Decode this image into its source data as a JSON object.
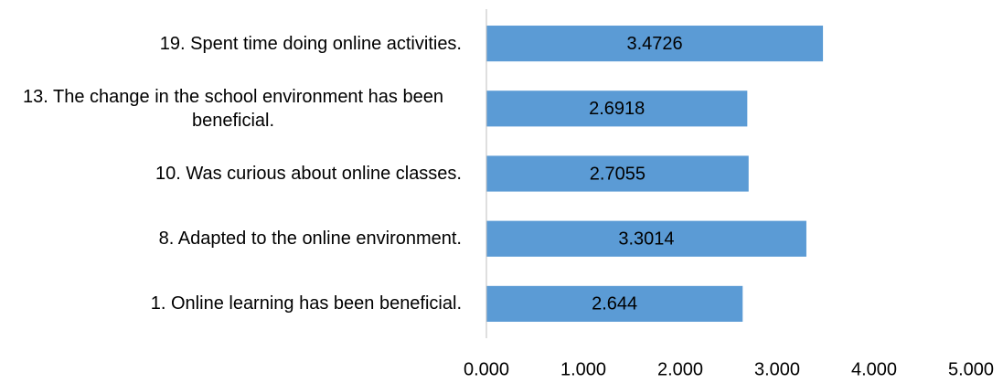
{
  "chart_data": {
    "type": "bar",
    "orientation": "horizontal",
    "categories": [
      "19. Spent time doing online activities.",
      "13. The change in the school environment has been beneficial.",
      "10. Was curious about online classes.",
      "8. Adapted to the online environment.",
      "1. Online learning has been beneficial."
    ],
    "values": [
      3.4726,
      2.6918,
      2.7055,
      3.3014,
      2.644
    ],
    "color": "#5b9bd5",
    "xlim": [
      0,
      5
    ],
    "xticks": [
      {
        "value": 0,
        "label": "0.000"
      },
      {
        "value": 1,
        "label": "1.000"
      },
      {
        "value": 2,
        "label": "2.000"
      },
      {
        "value": 3,
        "label": "3.000"
      },
      {
        "value": 4,
        "label": "4.000"
      },
      {
        "value": 5,
        "label": "5.000"
      }
    ],
    "grid": false
  }
}
